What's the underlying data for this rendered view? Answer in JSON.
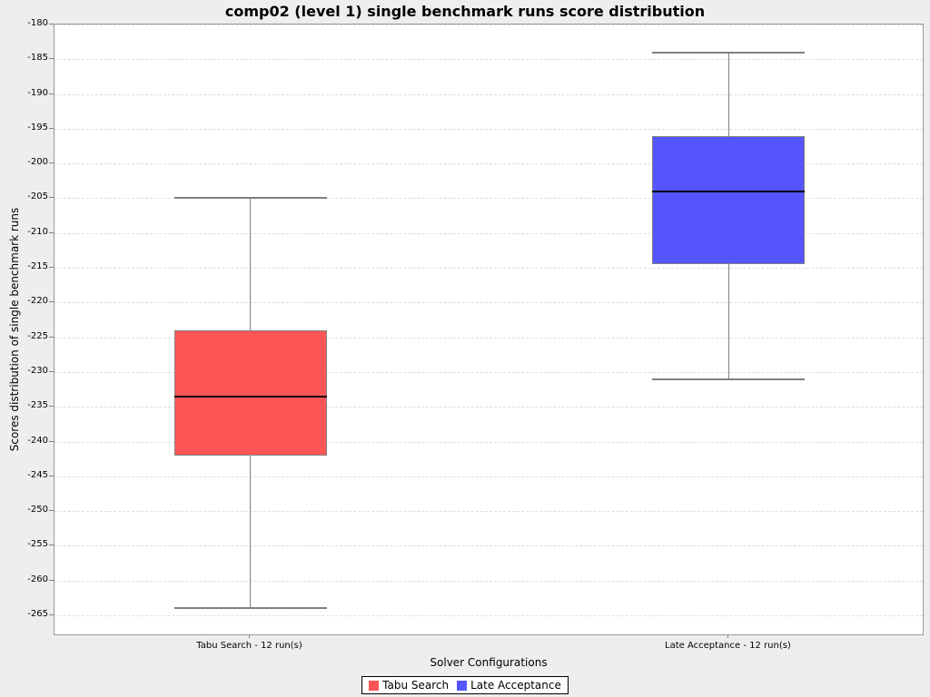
{
  "chart_data": {
    "type": "boxplot",
    "title": "comp02 (level 1) single benchmark runs score distribution",
    "xlabel": "Solver Configurations",
    "ylabel": "Scores distribution of single benchmark runs",
    "ylim": [
      -268,
      -180
    ],
    "yticks": [
      -180,
      -185,
      -190,
      -195,
      -200,
      -205,
      -210,
      -215,
      -220,
      -225,
      -230,
      -235,
      -240,
      -245,
      -250,
      -255,
      -260,
      -265
    ],
    "grid": true,
    "legend_position": "bottom",
    "categories": [
      "Tabu Search - 12 run(s)",
      "Late Acceptance - 12 run(s)"
    ],
    "series": [
      {
        "name": "Tabu Search",
        "color": "#ff5555",
        "center_frac": 0.225,
        "min": -264,
        "q1": -242,
        "median": -233.5,
        "q3": -224,
        "max": -205
      },
      {
        "name": "Late Acceptance",
        "color": "#5555ff",
        "center_frac": 0.775,
        "min": -231,
        "q1": -214.5,
        "median": -204,
        "q3": -196,
        "max": -184
      }
    ],
    "legend": [
      {
        "label": "Tabu Search",
        "color": "#ff5555"
      },
      {
        "label": "Late Acceptance",
        "color": "#5555ff"
      }
    ]
  },
  "colors": {
    "background": "#eeeeee",
    "plot_background": "#ffffff",
    "gridline": "#dddddd",
    "plot_border": "#999999",
    "box_outline": "#808080",
    "median": "#000000",
    "text": "#000000"
  }
}
